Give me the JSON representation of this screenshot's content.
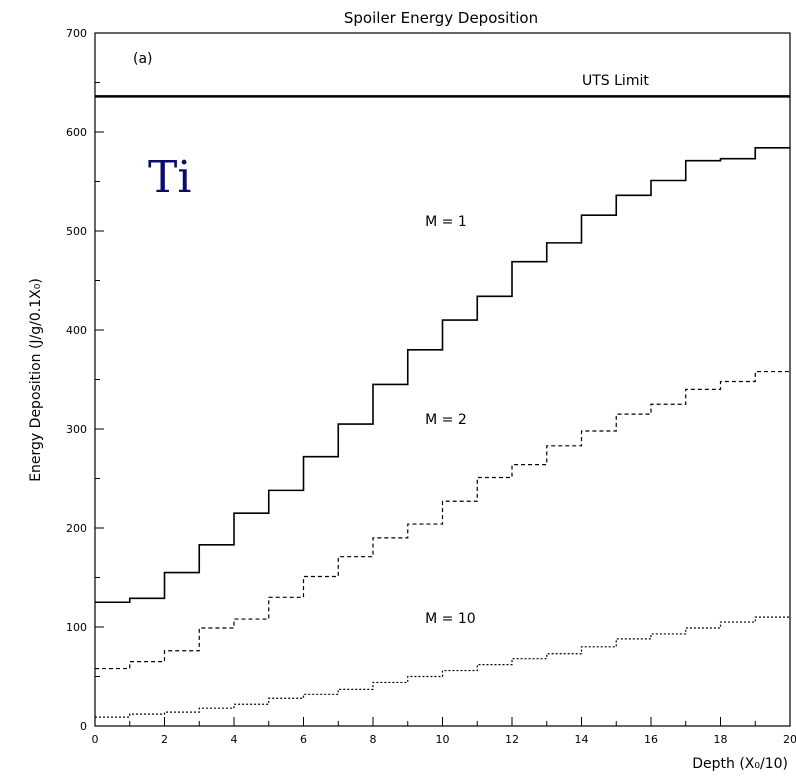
{
  "chart_data": {
    "type": "line",
    "title": "Spoiler Energy Deposition",
    "panel_label": "(a)",
    "material_label": "Ti",
    "xlabel": "Depth (X₀/10)",
    "ylabel": "Energy Deposition (J/g/0.1X₀)",
    "xlim": [
      0,
      20
    ],
    "ylim": [
      0,
      700
    ],
    "x_ticks": [
      0,
      2,
      4,
      6,
      8,
      10,
      12,
      14,
      16,
      18,
      20
    ],
    "y_ticks": [
      0,
      100,
      200,
      300,
      400,
      500,
      600,
      700
    ],
    "grid": false,
    "reference_line": {
      "label": "UTS Limit",
      "y": 636
    },
    "bin_edges": [
      0,
      1,
      2,
      3,
      4,
      5,
      6,
      7,
      8,
      9,
      10,
      11,
      12,
      13,
      14,
      15,
      16,
      17,
      18,
      19,
      20
    ],
    "series": [
      {
        "name": "M = 1",
        "style": "solid",
        "values": [
          125,
          129,
          155,
          183,
          215,
          238,
          272,
          305,
          345,
          380,
          410,
          434,
          469,
          488,
          516,
          536,
          551,
          571,
          573,
          584
        ]
      },
      {
        "name": "M = 2",
        "style": "dashed",
        "values": [
          58,
          65,
          76,
          99,
          108,
          130,
          151,
          171,
          190,
          204,
          227,
          251,
          264,
          283,
          298,
          315,
          325,
          340,
          348,
          358
        ]
      },
      {
        "name": "M = 10",
        "style": "dotted",
        "values": [
          9,
          12,
          14,
          18,
          22,
          28,
          32,
          37,
          44,
          50,
          56,
          62,
          68,
          73,
          80,
          88,
          93,
          99,
          105,
          110
        ]
      }
    ],
    "colors": {
      "line": "#000000",
      "material": "#0b0b6e",
      "background": "#ffffff"
    }
  }
}
